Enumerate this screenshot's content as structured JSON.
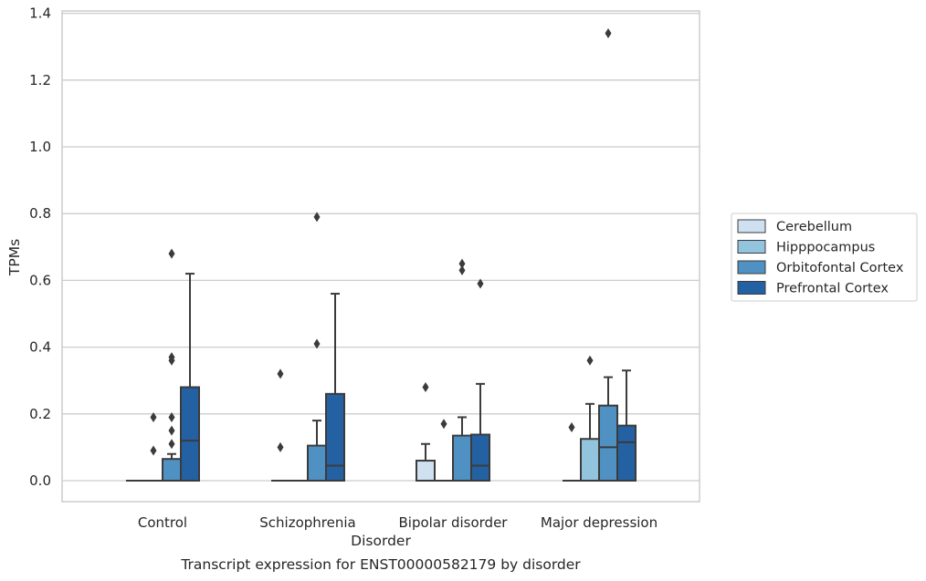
{
  "chart_data": {
    "type": "boxplot",
    "caption": "Transcript expression for ENST00000582179 by disorder",
    "xlabel": "Disorder",
    "ylabel": "TPMs",
    "ylim": [
      -0.06,
      1.41
    ],
    "yticks": [
      "0.0",
      "0.2",
      "0.4",
      "0.6",
      "0.8",
      "1.0",
      "1.2",
      "1.4"
    ],
    "grid": "horizontal",
    "legend_position": "right",
    "categories": [
      "Control",
      "Schizophrenia",
      "Bipolar disorder",
      "Major depression"
    ],
    "series": [
      {
        "name": "Cerebellum",
        "color": "#cfe0f1",
        "boxes": [
          {
            "q1": 0,
            "median": 0,
            "q3": 0,
            "whisker_low": 0,
            "whisker_high": 0,
            "outliers": []
          },
          {
            "q1": 0,
            "median": 0,
            "q3": 0,
            "whisker_low": 0,
            "whisker_high": 0,
            "outliers": [
              0.32,
              0.1
            ]
          },
          {
            "q1": 0,
            "median": 0,
            "q3": 0.06,
            "whisker_low": 0,
            "whisker_high": 0.11,
            "outliers": [
              0.28
            ]
          },
          {
            "q1": 0,
            "median": 0,
            "q3": 0,
            "whisker_low": 0,
            "whisker_high": 0,
            "outliers": [
              0.16
            ]
          }
        ]
      },
      {
        "name": "Hipppocampus",
        "color": "#93c4de",
        "boxes": [
          {
            "q1": 0,
            "median": 0,
            "q3": 0,
            "whisker_low": 0,
            "whisker_high": 0,
            "outliers": [
              0.19,
              0.09
            ]
          },
          {
            "q1": 0,
            "median": 0,
            "q3": 0,
            "whisker_low": 0,
            "whisker_high": 0,
            "outliers": []
          },
          {
            "q1": 0,
            "median": 0,
            "q3": 0,
            "whisker_low": 0,
            "whisker_high": 0,
            "outliers": [
              0.17
            ]
          },
          {
            "q1": 0,
            "median": 0,
            "q3": 0.125,
            "whisker_low": 0,
            "whisker_high": 0.23,
            "outliers": [
              0.36
            ]
          }
        ]
      },
      {
        "name": "Orbitofontal Cortex",
        "color": "#4f91c2",
        "boxes": [
          {
            "q1": 0,
            "median": 0,
            "q3": 0.065,
            "whisker_low": 0,
            "whisker_high": 0.08,
            "outliers": [
              0.68,
              0.37,
              0.36,
              0.19,
              0.15,
              0.11
            ]
          },
          {
            "q1": 0,
            "median": 0,
            "q3": 0.105,
            "whisker_low": 0,
            "whisker_high": 0.18,
            "outliers": [
              0.79,
              0.41
            ]
          },
          {
            "q1": 0,
            "median": 0,
            "q3": 0.135,
            "whisker_low": 0,
            "whisker_high": 0.19,
            "outliers": [
              0.65,
              0.63
            ]
          },
          {
            "q1": 0,
            "median": 0.1,
            "q3": 0.225,
            "whisker_low": 0,
            "whisker_high": 0.31,
            "outliers": [
              1.34
            ]
          }
        ]
      },
      {
        "name": "Prefrontal Cortex",
        "color": "#2361a3",
        "boxes": [
          {
            "q1": 0,
            "median": 0.12,
            "q3": 0.28,
            "whisker_low": 0,
            "whisker_high": 0.62,
            "outliers": []
          },
          {
            "q1": 0,
            "median": 0.045,
            "q3": 0.26,
            "whisker_low": 0,
            "whisker_high": 0.56,
            "outliers": []
          },
          {
            "q1": 0,
            "median": 0.045,
            "q3": 0.138,
            "whisker_low": 0,
            "whisker_high": 0.29,
            "outliers": [
              0.59
            ]
          },
          {
            "q1": 0,
            "median": 0.115,
            "q3": 0.165,
            "whisker_low": 0,
            "whisker_high": 0.33,
            "outliers": []
          }
        ]
      }
    ]
  }
}
